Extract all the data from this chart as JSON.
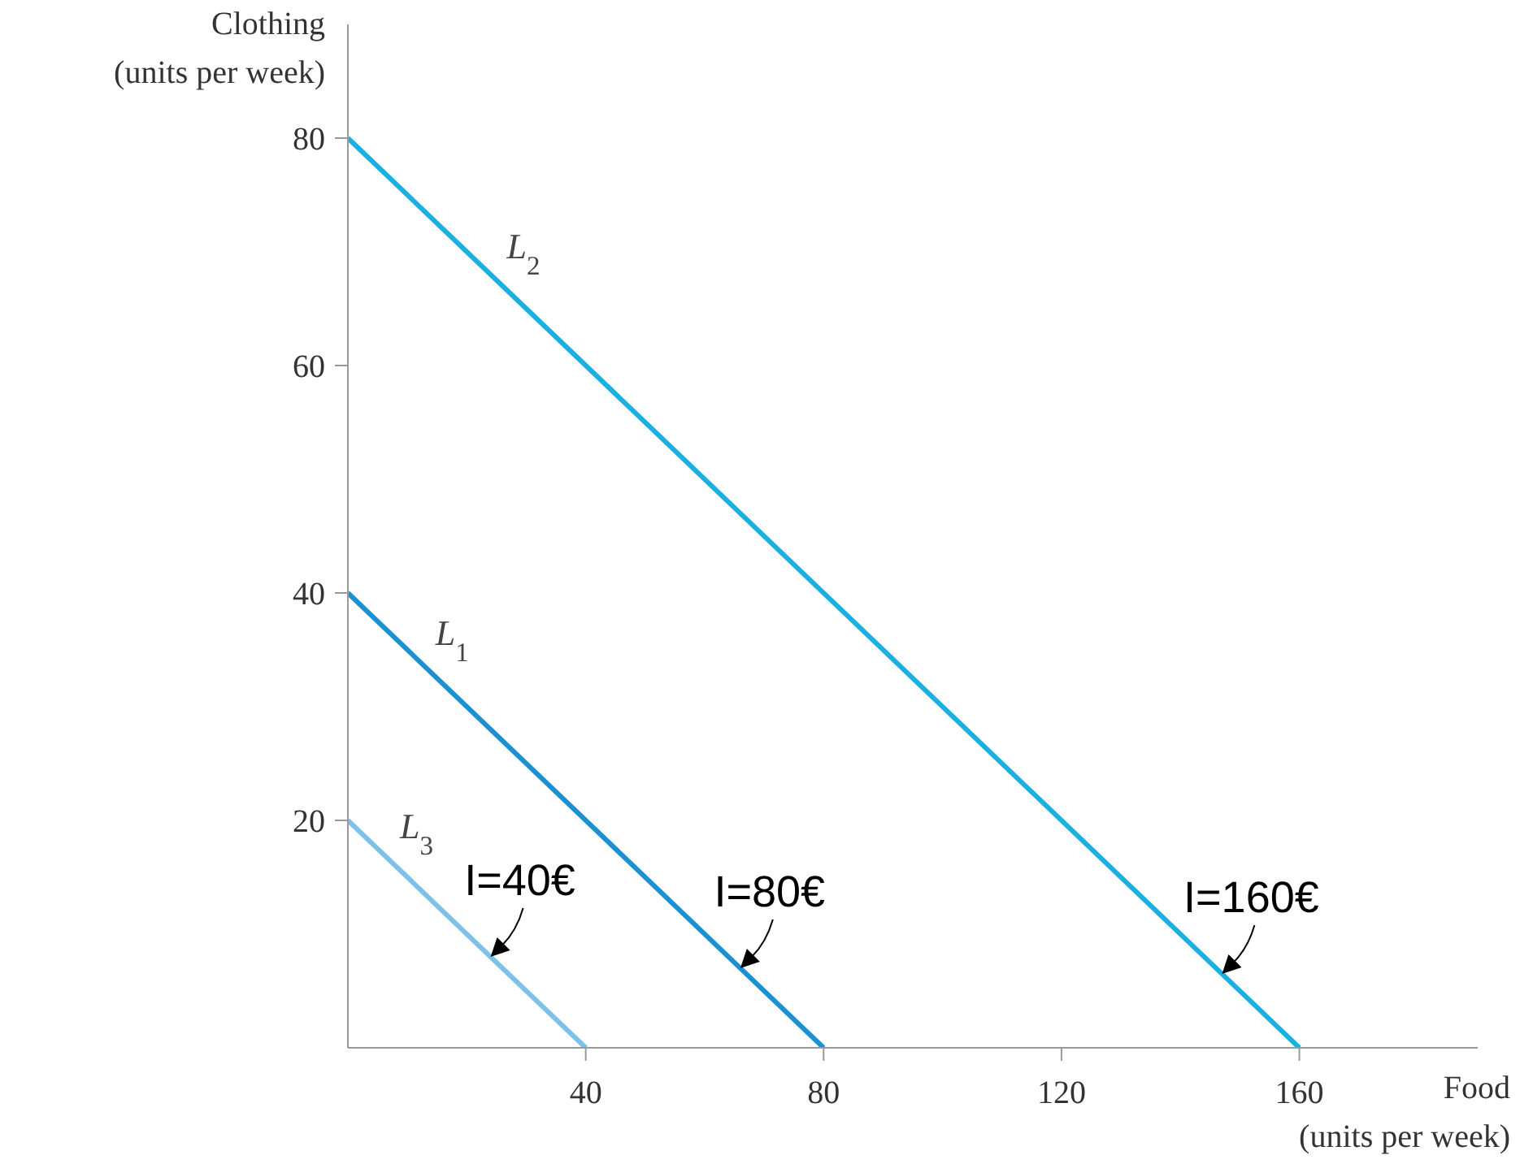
{
  "chart_data": {
    "type": "line",
    "xlabel": "Food\n(units per week)",
    "ylabel": "Clothing\n(units per week)",
    "xlim": [
      0,
      190
    ],
    "ylim": [
      0,
      90
    ],
    "xticks": [
      40,
      80,
      120,
      160
    ],
    "yticks": [
      20,
      40,
      60,
      80
    ],
    "marker": "none",
    "line_style": "solid",
    "series": [
      {
        "name": "L$_{3}$",
        "color": "#7dc0e8",
        "x": [
          0,
          40
        ],
        "values": [
          20,
          0
        ]
      },
      {
        "name": "L$_{1}$",
        "color": "#1b90d2",
        "x": [
          0,
          80
        ],
        "values": [
          40,
          0
        ]
      },
      {
        "name": "L$_{2}$",
        "color": "#1cb0e2",
        "x": [
          0,
          160
        ],
        "values": [
          80,
          0
        ]
      }
    ],
    "annotations": [
      {
        "text": "I=40€",
        "x": 24,
        "y": 8
      },
      {
        "text": "I=80€",
        "x": 66,
        "y": 7
      },
      {
        "text": "I=160€",
        "x": 147,
        "y": 6.5
      }
    ]
  }
}
